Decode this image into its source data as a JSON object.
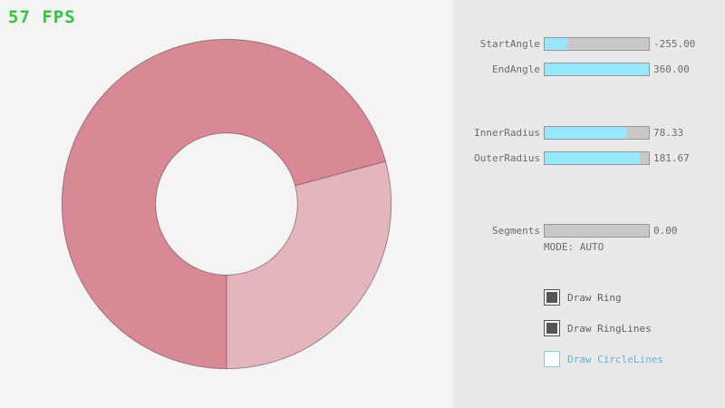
{
  "fps": {
    "text": "57 FPS",
    "color": "#2dc837"
  },
  "ring": {
    "start_angle": -255.0,
    "end_angle": 360.0,
    "inner_radius": 78.33,
    "outer_radius": 181.67,
    "segments": 0.0,
    "color_overlap": "#d98994",
    "color_single": "#e4b5bc",
    "outline_color": "rgba(0,0,0,0.35)"
  },
  "panel": {
    "sliders": [
      {
        "label": "StartAngle",
        "value": "-255.00",
        "fraction": 0.22
      },
      {
        "label": "EndAngle",
        "value": "360.00",
        "fraction": 1.0
      },
      {
        "label": "InnerRadius",
        "value": "78.33",
        "fraction": 0.78
      },
      {
        "label": "OuterRadius",
        "value": "181.67",
        "fraction": 0.91
      },
      {
        "label": "Segments",
        "value": "0.00",
        "fraction": 0.0
      }
    ],
    "mode_text": "MODE: AUTO",
    "checkboxes": [
      {
        "label": "Draw Ring",
        "checked": true
      },
      {
        "label": "Draw RingLines",
        "checked": true
      },
      {
        "label": "Draw CircleLines",
        "checked": false
      }
    ]
  }
}
